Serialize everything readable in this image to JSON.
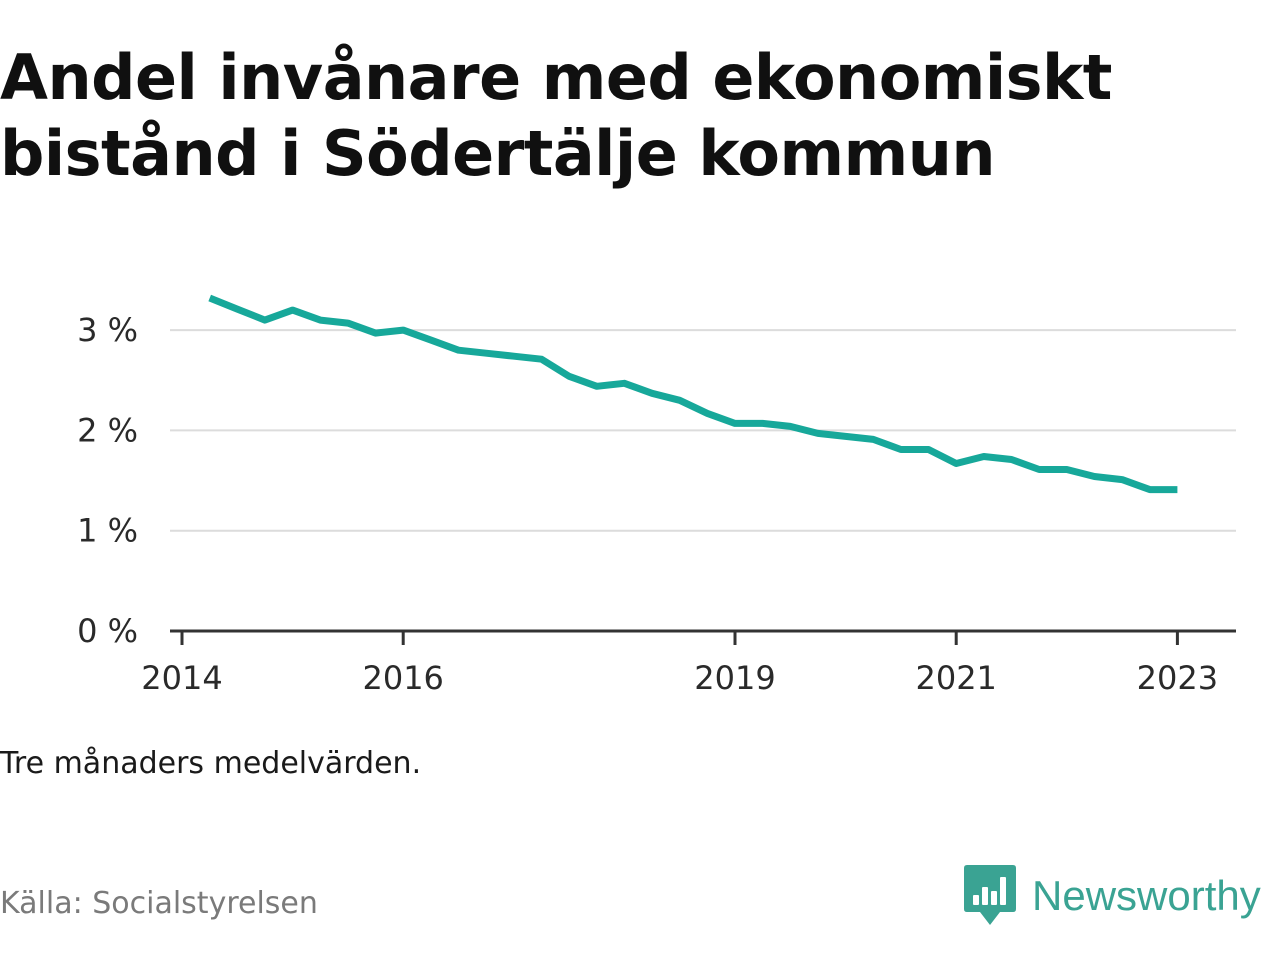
{
  "title": "Andel invånare med ekonomiskt bistånd i Södertälje kommun",
  "note": "Tre månaders medelvärden.",
  "source": "Källa: Socialstyrelsen",
  "brand": {
    "name": "Newsworthy",
    "icon": "newsworthy-logo-icon",
    "color": "#3aa393"
  },
  "colors": {
    "line": "#17a89a",
    "grid": "#dcdcdc",
    "axis": "#333333"
  },
  "chart_data": {
    "type": "line",
    "title": "Andel invånare med ekonomiskt bistånd i Södertälje kommun",
    "xlabel": "",
    "ylabel": "",
    "x_ticks": [
      "2014",
      "2016",
      "2019",
      "2021",
      "2023"
    ],
    "y_ticks": [
      "0 %",
      "1 %",
      "2 %",
      "3 %"
    ],
    "ylim": [
      0,
      3.4
    ],
    "xlim": [
      "2014-01",
      "2023-06"
    ],
    "grid": true,
    "series": [
      {
        "x": [
          "2014-04",
          "2014-07",
          "2014-10",
          "2015-01",
          "2015-04",
          "2015-07",
          "2015-10",
          "2016-01",
          "2016-04",
          "2016-07",
          "2016-10",
          "2017-01",
          "2017-04",
          "2017-07",
          "2017-10",
          "2018-01",
          "2018-04",
          "2018-07",
          "2018-10",
          "2019-01",
          "2019-04",
          "2019-07",
          "2019-10",
          "2020-01",
          "2020-04",
          "2020-07",
          "2020-10",
          "2021-01",
          "2021-04",
          "2021-07",
          "2021-10",
          "2022-01",
          "2022-04",
          "2022-07",
          "2022-10",
          "2023-01"
        ],
        "values": [
          3.32,
          3.21,
          3.1,
          3.2,
          3.1,
          3.07,
          2.97,
          3.0,
          2.9,
          2.8,
          2.77,
          2.74,
          2.71,
          2.54,
          2.44,
          2.47,
          2.37,
          2.3,
          2.17,
          2.07,
          2.07,
          2.04,
          1.97,
          1.94,
          1.91,
          1.81,
          1.81,
          1.67,
          1.74,
          1.71,
          1.61,
          1.61,
          1.54,
          1.51,
          1.41,
          1.41
        ]
      }
    ]
  }
}
